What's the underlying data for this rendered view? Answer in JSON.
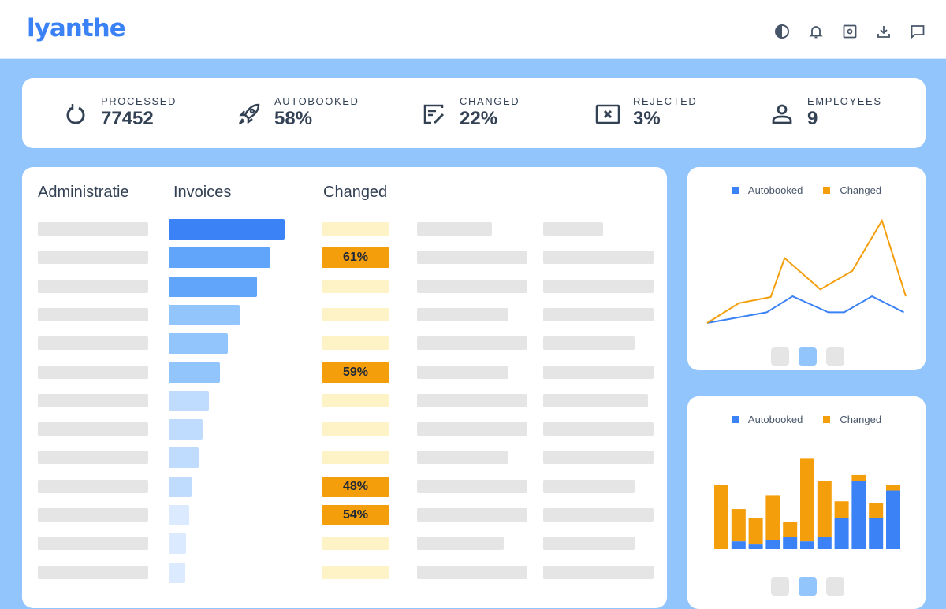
{
  "header": {
    "logo": "lyanthe",
    "icons": [
      "contrast-icon",
      "bell-icon",
      "settings-icon",
      "download-icon",
      "chat-icon"
    ]
  },
  "stats": [
    {
      "icon": "refresh-icon",
      "label": "PROCESSED",
      "value": "77452"
    },
    {
      "icon": "rocket-icon",
      "label": "AUTOBOOKED",
      "value": "58%"
    },
    {
      "icon": "edit-icon",
      "label": "CHANGED",
      "value": "22%"
    },
    {
      "icon": "reject-icon",
      "label": "REJECTED",
      "value": "3%"
    },
    {
      "icon": "user-icon",
      "label": "EMPLOYEES",
      "value": "9"
    }
  ],
  "table": {
    "headers": [
      "Administratie",
      "Invoices",
      "Changed"
    ],
    "invoice_relative": [
      100,
      88,
      76,
      61,
      51,
      44,
      35,
      29,
      26,
      20,
      18,
      15,
      14
    ],
    "changed": [
      "",
      "61%",
      "",
      "",
      "",
      "59%",
      "",
      "",
      "",
      "48%",
      "54%",
      "",
      ""
    ]
  },
  "colors": {
    "autobooked": "#3b82f6",
    "changed": "#f59e0b",
    "background": "#93c5fd"
  },
  "chart_data": [
    {
      "type": "line",
      "legend": [
        "Autobooked",
        "Changed"
      ],
      "legend_placement": "top",
      "series": [
        {
          "name": "Autobooked",
          "x": [
            0,
            30,
            43,
            61,
            69,
            83,
            99
          ],
          "y": [
            0,
            14,
            35,
            14,
            14,
            35,
            14
          ]
        },
        {
          "name": "Changed",
          "x": [
            0,
            16,
            32,
            39,
            57,
            73,
            88,
            100
          ],
          "y": [
            0,
            26,
            34,
            85,
            44,
            68,
            134,
            35
          ]
        }
      ],
      "pager": {
        "pages": 3,
        "active": 2
      }
    },
    {
      "type": "bar",
      "stacked": true,
      "legend": [
        "Autobooked",
        "Changed"
      ],
      "legend_placement": "top",
      "series": [
        {
          "name": "Autobooked",
          "values": [
            0,
            10,
            6,
            12,
            16,
            10,
            16,
            40,
            88,
            40,
            76
          ]
        },
        {
          "name": "Changed",
          "values": [
            83,
            42,
            34,
            58,
            19,
            108,
            72,
            22,
            8,
            20,
            7
          ]
        }
      ],
      "pager": {
        "pages": 3,
        "active": 2
      }
    }
  ]
}
